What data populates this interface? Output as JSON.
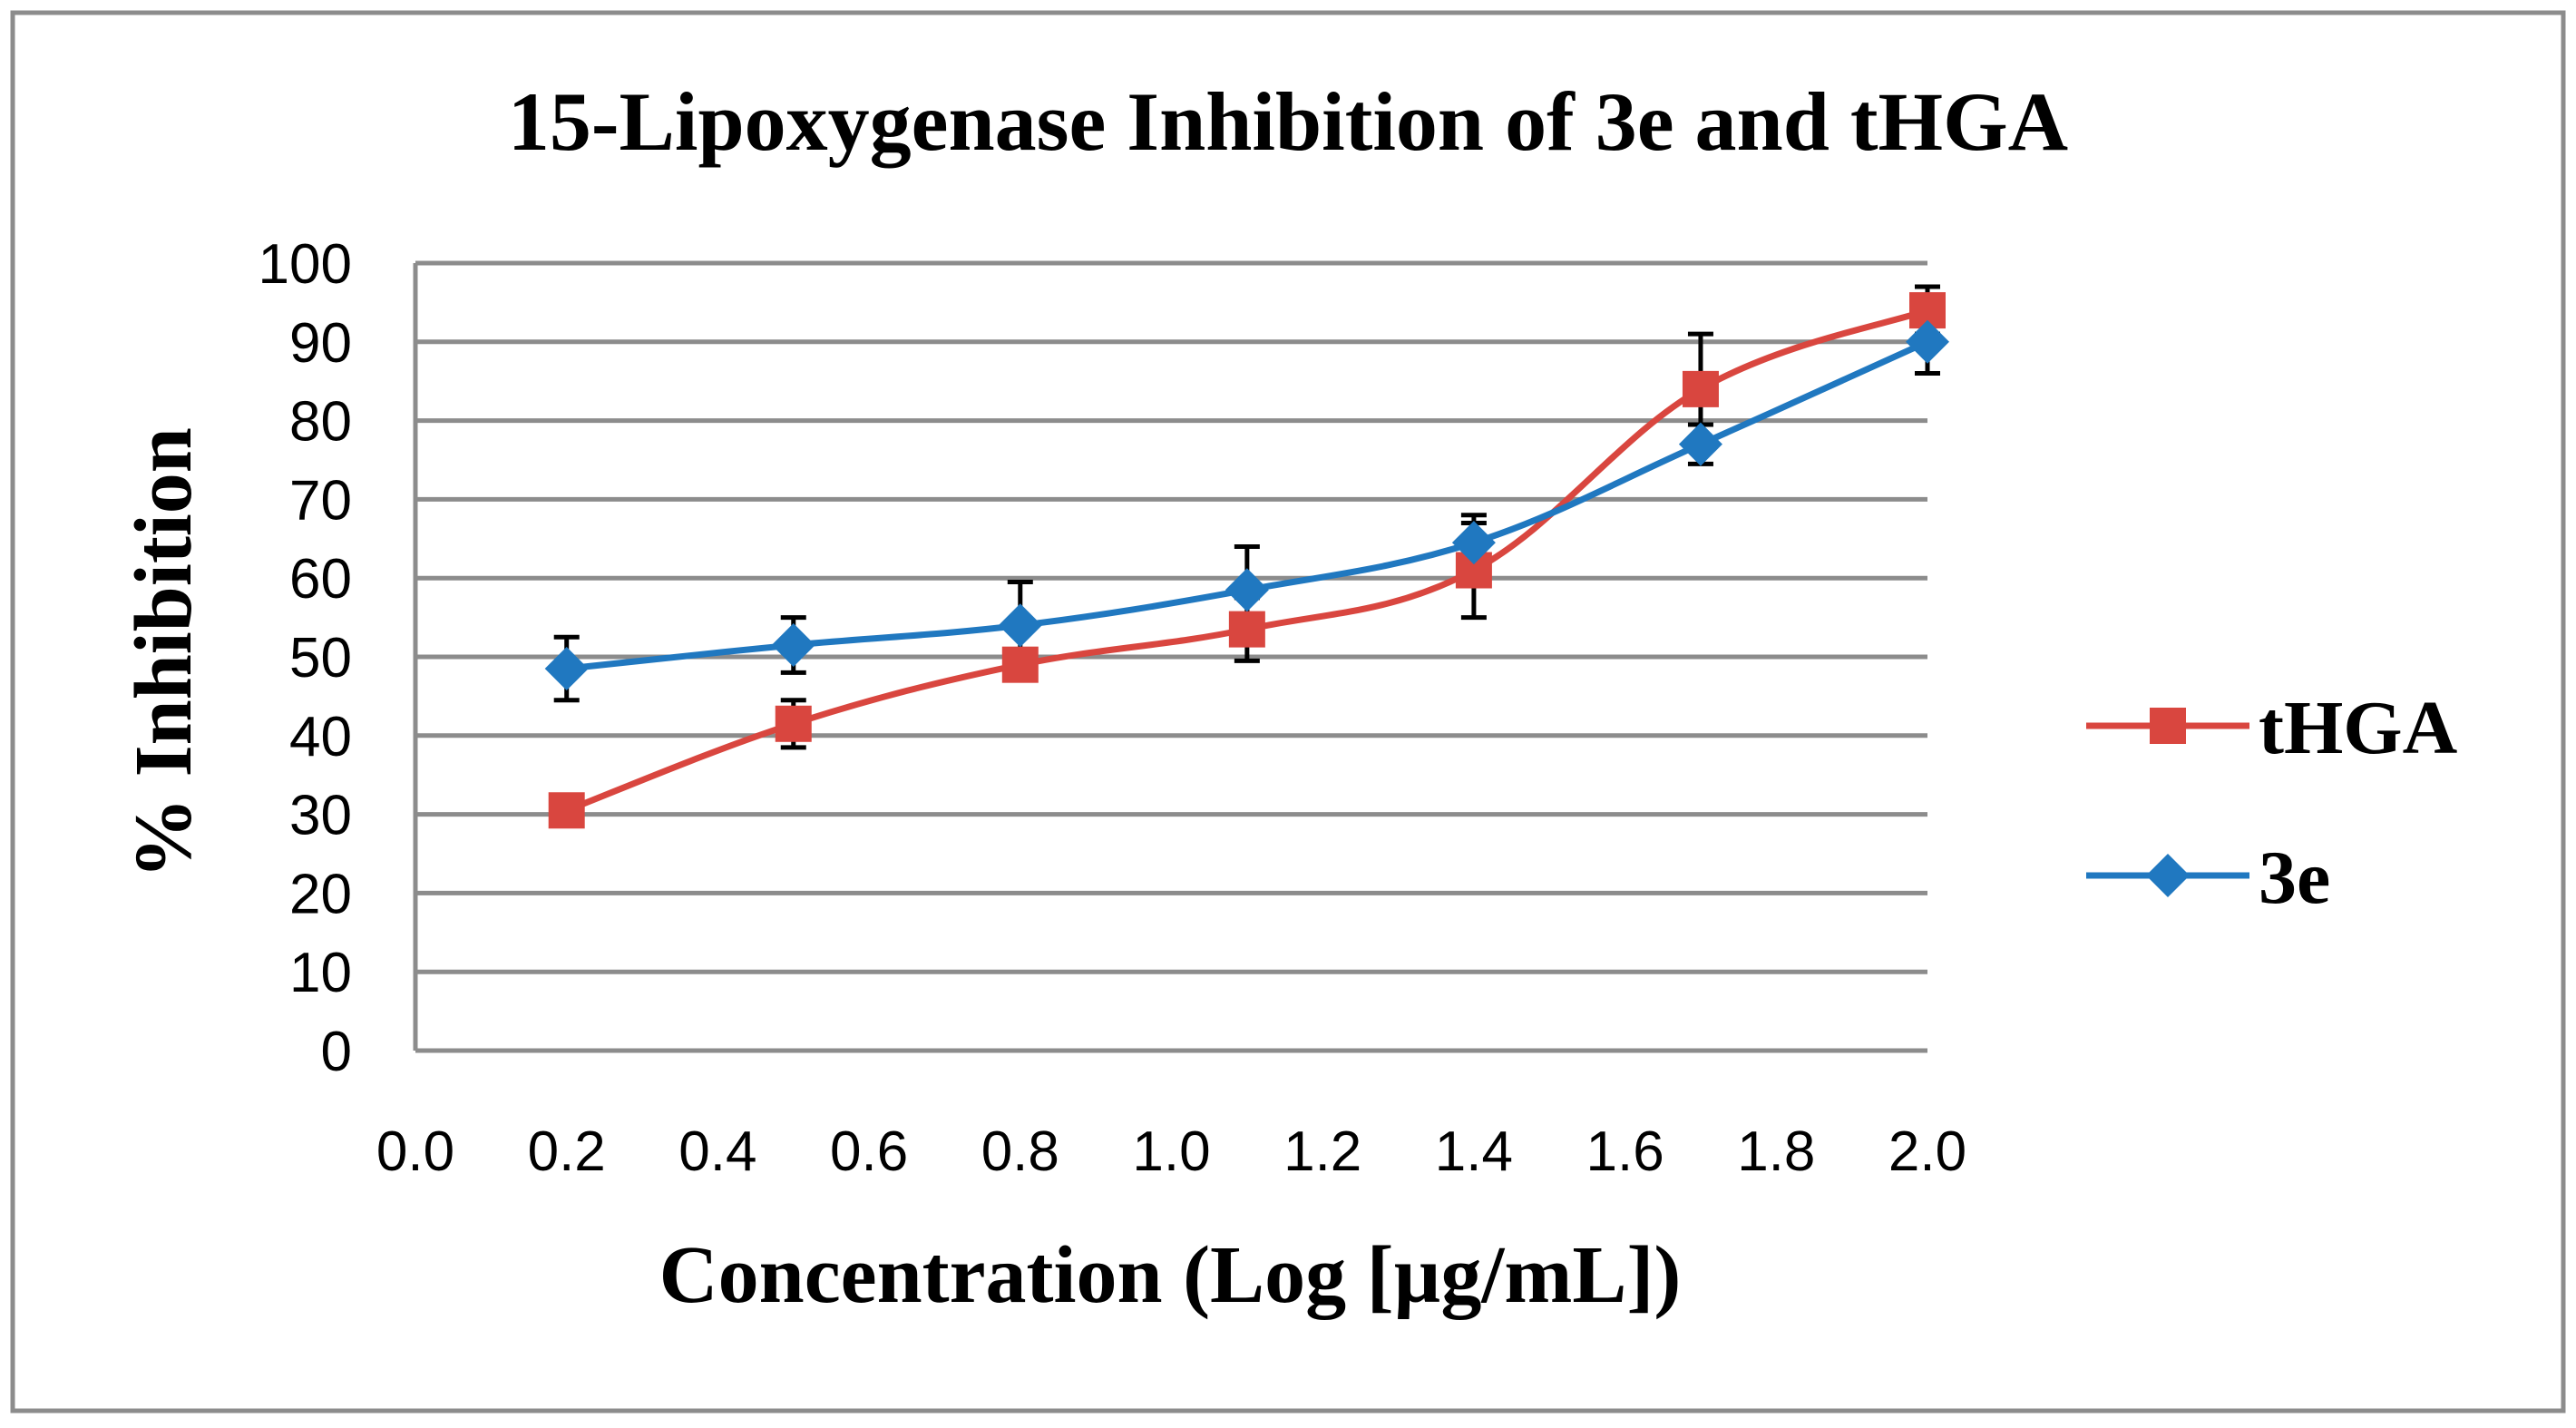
{
  "chart_data": {
    "type": "line",
    "title": "15-Lipoxygenase Inhibition of 3e and tHGA",
    "xlabel": "Concentration (Log [µg/mL])",
    "ylabel": "% Inhibition",
    "xlim": [
      0.0,
      2.0
    ],
    "ylim": [
      0,
      100
    ],
    "x_ticks": [
      "0.0",
      "0.2",
      "0.4",
      "0.6",
      "0.8",
      "1.0",
      "1.2",
      "1.4",
      "1.6",
      "1.8",
      "2.0"
    ],
    "y_ticks": [
      "0",
      "10",
      "20",
      "30",
      "40",
      "50",
      "60",
      "70",
      "80",
      "90",
      "100"
    ],
    "grid": "horizontal",
    "legend_position": "right",
    "series": [
      {
        "name": "tHGA",
        "color": "#D9463F",
        "marker": "square",
        "x": [
          0.2,
          0.5,
          0.8,
          1.1,
          1.4,
          1.7,
          2.0
        ],
        "values": [
          30.5,
          41.5,
          49,
          53.5,
          61,
          84,
          94
        ],
        "error": [
          0,
          3,
          0,
          4,
          6,
          7,
          3
        ]
      },
      {
        "name": "3e",
        "color": "#2078C0",
        "marker": "diamond",
        "x": [
          0.2,
          0.5,
          0.8,
          1.1,
          1.4,
          1.7,
          2.0
        ],
        "values": [
          48.5,
          51.5,
          54,
          58.5,
          64.5,
          77,
          90
        ],
        "error": [
          4,
          3.5,
          5.5,
          5.5,
          3.5,
          2.5,
          4
        ]
      }
    ]
  }
}
